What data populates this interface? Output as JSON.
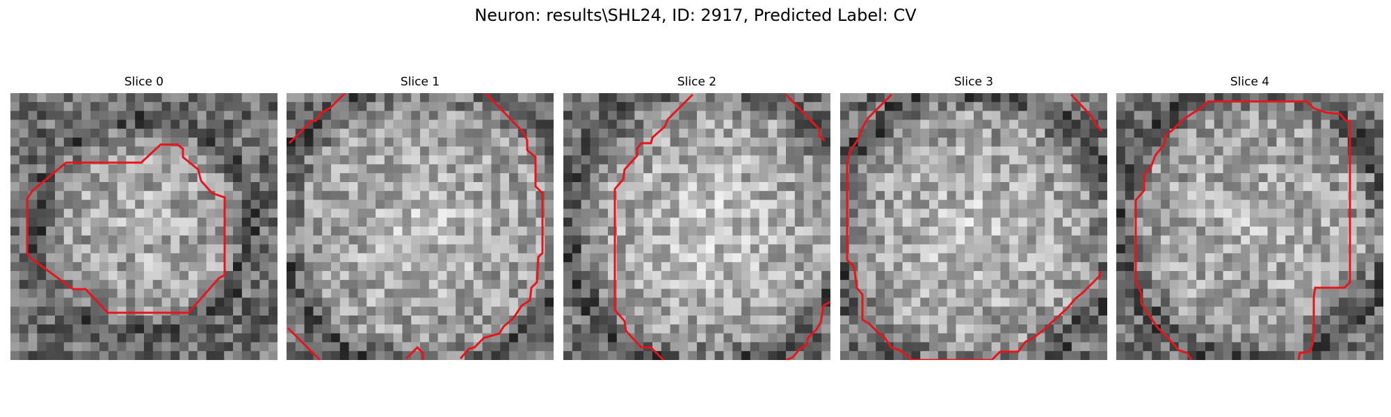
{
  "figure": {
    "title": "Neuron: results\\SHL24, ID: 2917, Predicted Label: CV"
  },
  "panels": [
    {
      "title": "Slice 0"
    },
    {
      "title": "Slice 1"
    },
    {
      "title": "Slice 2"
    },
    {
      "title": "Slice 3"
    },
    {
      "title": "Slice 4"
    }
  ],
  "colors": {
    "contour": "#e8141c",
    "background": "#ffffff"
  }
}
